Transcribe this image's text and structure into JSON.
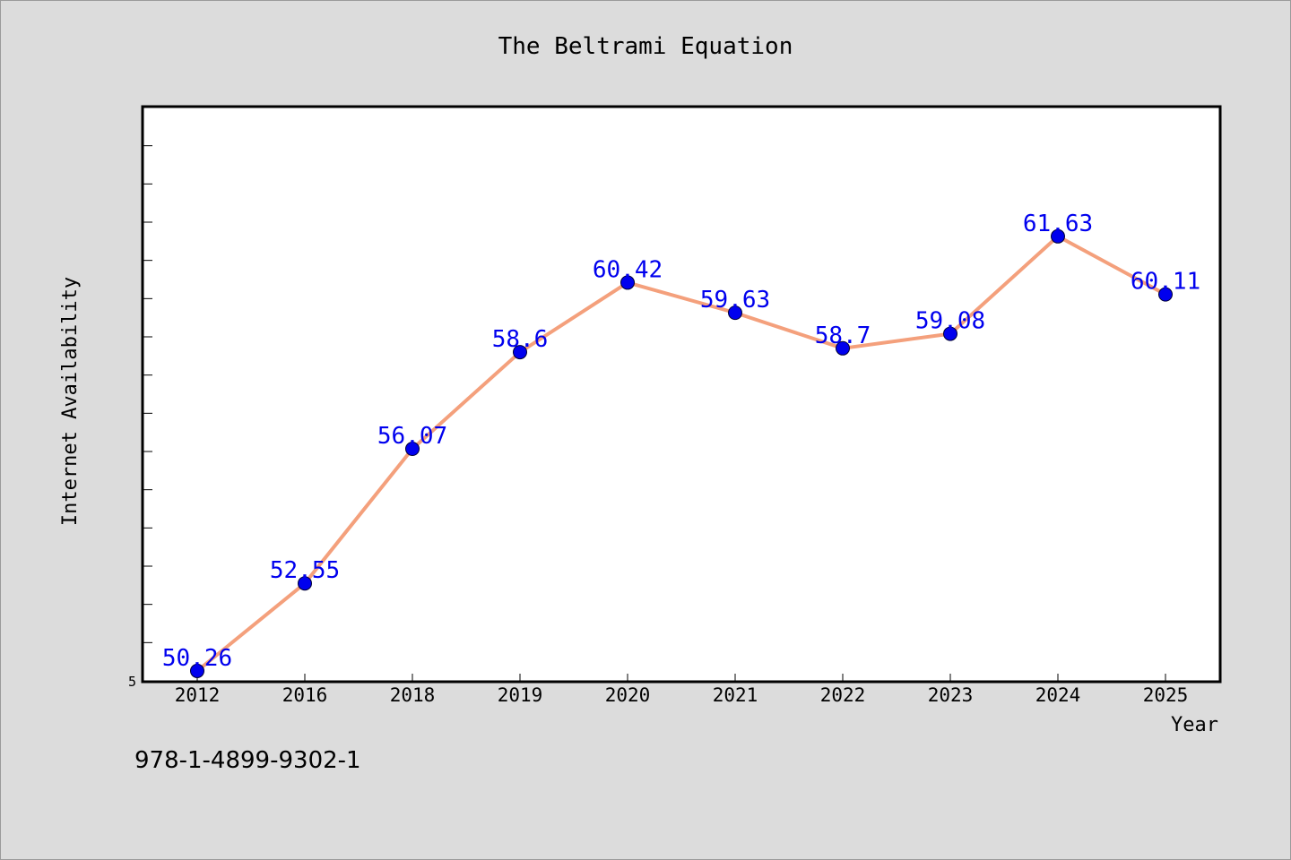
{
  "chart_data": {
    "type": "line",
    "title": "The Beltrami Equation",
    "xlabel": "Year",
    "ylabel": "Internet Availability",
    "categories": [
      "2012",
      "2016",
      "2018",
      "2019",
      "2020",
      "2021",
      "2022",
      "2023",
      "2024",
      "2025"
    ],
    "series": [
      {
        "values": [
          50.26,
          52.55,
          56.07,
          58.6,
          60.42,
          59.63,
          58.7,
          59.08,
          61.63,
          60.11
        ],
        "data_labels": [
          "50.26",
          "52.55",
          "56.07",
          "58.6",
          "60.42",
          "59.63",
          "58.7",
          "59.08",
          "61.63",
          "60.11"
        ],
        "line_color": "#f4a07c",
        "marker_color": "#0000ee",
        "label_color": "#0000ee"
      }
    ],
    "ylim": [
      50,
      65
    ],
    "y_tick_label": "5",
    "grid": false,
    "legend": "none"
  },
  "footer": {
    "caption": "978-1-4899-9302-1"
  }
}
